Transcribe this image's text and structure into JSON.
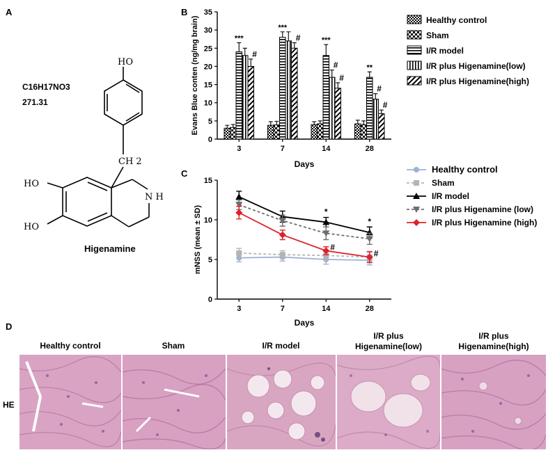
{
  "panel_a": {
    "label": "A",
    "formula": "C16H17NO3",
    "mass": "271.31",
    "compound_name": "Higenamine",
    "atoms": {
      "oh_top": "HO",
      "ch2": "CH 2",
      "ho_left1": "HO",
      "ho_left2": "HO",
      "nh": "N H"
    }
  },
  "panel_b": {
    "label": "B"
  },
  "panel_c": {
    "label": "C"
  },
  "panel_d": {
    "label": "D",
    "row_label": "HE",
    "titles": [
      "Healthy control",
      "Sham",
      "I/R model",
      "I/R plus Higenamine(low)",
      "I/R plus Higenamine(high)"
    ],
    "titles_split": [
      [
        "Healthy control"
      ],
      [
        "Sham"
      ],
      [
        "I/R model"
      ],
      [
        "I/R plus",
        "Higenamine(low)"
      ],
      [
        "I/R plus",
        "Higenamine(high)"
      ]
    ]
  },
  "chart_data": [
    {
      "type": "bar",
      "title": "",
      "xlabel": "Days",
      "ylabel": "Evans Blue conten (ng/mg brain)",
      "categories": [
        "3",
        "7",
        "14",
        "28"
      ],
      "ylim": [
        0,
        35
      ],
      "yticks": [
        0,
        5,
        10,
        15,
        20,
        25,
        30,
        35
      ],
      "legend_position": "right",
      "series": [
        {
          "name": "Healthy control",
          "values": [
            3.0,
            3.8,
            4.0,
            4.2
          ],
          "errors": [
            0.8,
            1.0,
            0.8,
            1.0
          ],
          "pattern": "checker-fine"
        },
        {
          "name": "Sham",
          "values": [
            3.2,
            3.9,
            4.2,
            4.0
          ],
          "errors": [
            0.8,
            1.0,
            0.8,
            1.0
          ],
          "pattern": "checker-coarse"
        },
        {
          "name": "I/R model",
          "values": [
            24.0,
            28.0,
            23.0,
            17.0
          ],
          "errors": [
            2.5,
            1.5,
            3.0,
            1.5
          ],
          "pattern": "hstripes"
        },
        {
          "name": "I/R plus Higenamine(low)",
          "values": [
            23.0,
            27.0,
            17.0,
            11.0
          ],
          "errors": [
            2.0,
            2.5,
            2.0,
            1.5
          ],
          "pattern": "vstripes"
        },
        {
          "name": "I/R plus Higenamine(high)",
          "values": [
            20.0,
            25.0,
            14.0,
            7.0
          ],
          "errors": [
            2.0,
            1.5,
            1.5,
            1.0
          ],
          "pattern": "diag"
        }
      ],
      "annotations": [
        {
          "category": "3",
          "series": "I/R model",
          "text": "***"
        },
        {
          "category": "3",
          "series": "I/R plus Higenamine(high)",
          "text": "#"
        },
        {
          "category": "7",
          "series": "I/R model",
          "text": "***"
        },
        {
          "category": "7",
          "series": "I/R plus Higenamine(high)",
          "text": "#"
        },
        {
          "category": "14",
          "series": "I/R model",
          "text": "***"
        },
        {
          "category": "14",
          "series": "I/R plus Higenamine(low)",
          "text": "#"
        },
        {
          "category": "14",
          "series": "I/R plus Higenamine(high)",
          "text": "#"
        },
        {
          "category": "28",
          "series": "I/R model",
          "text": "**"
        },
        {
          "category": "28",
          "series": "I/R plus Higenamine(low)",
          "text": "#"
        },
        {
          "category": "28",
          "series": "I/R plus Higenamine(high)",
          "text": "#"
        }
      ]
    },
    {
      "type": "line",
      "title": "",
      "xlabel": "Days",
      "ylabel": "mNSS (mean ± SD)",
      "x": [
        "3",
        "7",
        "14",
        "28"
      ],
      "ylim": [
        0,
        15
      ],
      "yticks": [
        0,
        5,
        10,
        15
      ],
      "legend_position": "top-right",
      "series": [
        {
          "name": "Healthy control",
          "values": [
            5.2,
            5.3,
            5.0,
            4.9
          ],
          "errors": [
            0.5,
            0.5,
            0.6,
            0.6
          ],
          "color": "#9fb0d6",
          "marker": "circle",
          "dash": false
        },
        {
          "name": "Sham",
          "values": [
            5.8,
            5.6,
            5.5,
            5.3
          ],
          "errors": [
            0.6,
            0.5,
            0.6,
            0.6
          ],
          "color": "#b4b4b4",
          "marker": "square",
          "dash": true
        },
        {
          "name": "I/R model",
          "values": [
            12.9,
            10.4,
            9.7,
            8.4
          ],
          "errors": [
            0.7,
            0.7,
            0.6,
            0.7
          ],
          "color": "#000000",
          "marker": "triangle-up",
          "dash": false
        },
        {
          "name": "I/R plus Higenamine (low)",
          "values": [
            11.9,
            9.9,
            8.3,
            7.6
          ],
          "errors": [
            0.6,
            0.7,
            0.8,
            0.7
          ],
          "color": "#6e6e6e",
          "marker": "triangle-down",
          "dash": true
        },
        {
          "name": "I/R plus Higenamine (high)",
          "values": [
            10.9,
            8.1,
            6.1,
            5.3
          ],
          "errors": [
            0.8,
            0.6,
            0.5,
            0.7
          ],
          "color": "#e0202a",
          "marker": "diamond",
          "dash": false
        }
      ],
      "annotations": [
        {
          "x": "14",
          "series": "I/R model",
          "text": "*"
        },
        {
          "x": "28",
          "series": "I/R model",
          "text": "*"
        },
        {
          "x": "14",
          "series": "I/R plus Higenamine (high)",
          "text": "#"
        },
        {
          "x": "28",
          "series": "I/R plus Higenamine (high)",
          "text": "#"
        }
      ]
    }
  ]
}
